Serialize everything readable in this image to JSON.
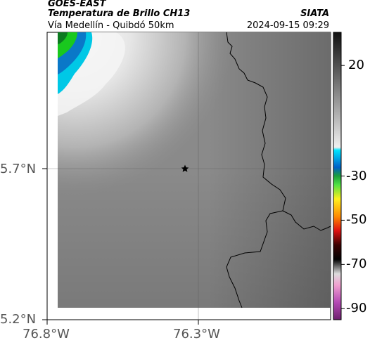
{
  "header": {
    "satellite": "GOES-EAST",
    "product": "Temperatura de Brillo CH13",
    "region": "Vía Medellín - Quibdó 50km",
    "org": "SIATA",
    "datetime": "2024-09-15 09:29"
  },
  "map": {
    "lat_ticks": [
      {
        "label": "5.7°N",
        "value": 5.7
      },
      {
        "label": "5.2°N",
        "value": 5.2
      }
    ],
    "lon_ticks": [
      {
        "label": "76.8°W",
        "value": -76.8
      },
      {
        "label": "76.3°W",
        "value": -76.3
      }
    ],
    "marker": "star-icon",
    "colors": {
      "warm_fill": "#8a8a8a",
      "cold_cloud": "#f2f2f2",
      "coldest_cyan": "#00c8e6",
      "coldest_green": "#19c81e",
      "boundary": "#000000"
    }
  },
  "colorbar": {
    "labels": [
      {
        "text": "20",
        "value": 20
      },
      {
        "text": "-30",
        "value": -30
      },
      {
        "text": "-50",
        "value": -50
      },
      {
        "text": "-70",
        "value": -70
      },
      {
        "text": "-90",
        "value": -90
      }
    ],
    "vmin": -95,
    "vmax": 35
  }
}
